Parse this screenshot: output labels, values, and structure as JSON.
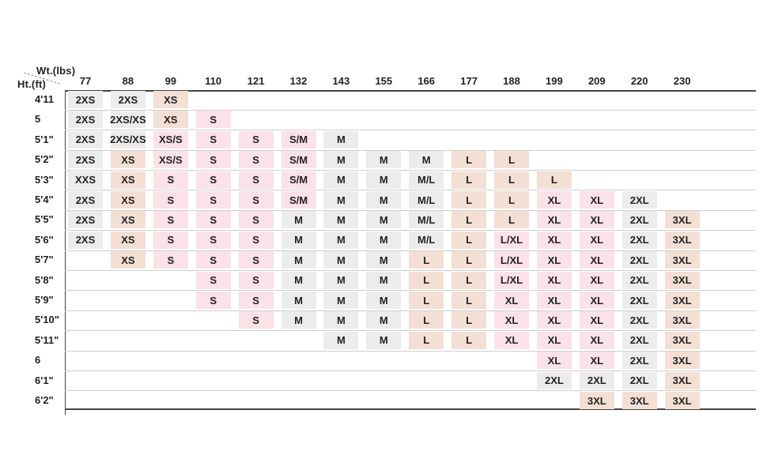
{
  "chart_data": {
    "type": "table",
    "x_label": "Wt.(lbs)",
    "y_label": "Ht.(ft)",
    "weights": [
      "77",
      "88",
      "99",
      "110",
      "121",
      "132",
      "143",
      "155",
      "166",
      "177",
      "188",
      "199",
      "209",
      "220",
      "230"
    ],
    "heights": [
      "4'11",
      "5",
      "5'1\"",
      "5'2\"",
      "5'3\"",
      "5'4\"",
      "5'5\"",
      "5'6\"",
      "5'7\"",
      "5'8\"",
      "5'9\"",
      "5'10\"",
      "5'11\"",
      "6",
      "6'1\"",
      "6'2\""
    ],
    "rows": [
      {
        "height": "4'11",
        "start": 0,
        "sizes": [
          "2XS",
          "2XS",
          "XS"
        ]
      },
      {
        "height": "5",
        "start": 0,
        "sizes": [
          "2XS",
          "2XS/XS",
          "XS",
          "S"
        ]
      },
      {
        "height": "5'1\"",
        "start": 0,
        "sizes": [
          "2XS",
          "2XS/XS",
          "XS/S",
          "S",
          "S",
          "S/M",
          "M"
        ]
      },
      {
        "height": "5'2\"",
        "start": 0,
        "sizes": [
          "2XS",
          "XS",
          "XS/S",
          "S",
          "S",
          "S/M",
          "M",
          "M",
          "M",
          "L",
          "L"
        ]
      },
      {
        "height": "5'3\"",
        "start": 0,
        "sizes": [
          "XXS",
          "XS",
          "S",
          "S",
          "S",
          "S/M",
          "M",
          "M",
          "M/L",
          "L",
          "L",
          "L"
        ]
      },
      {
        "height": "5'4\"",
        "start": 0,
        "sizes": [
          "2XS",
          "XS",
          "S",
          "S",
          "S",
          "S/M",
          "M",
          "M",
          "M/L",
          "L",
          "L",
          "XL",
          "XL",
          "2XL"
        ]
      },
      {
        "height": "5'5\"",
        "start": 0,
        "sizes": [
          "2XS",
          "XS",
          "S",
          "S",
          "S",
          "M",
          "M",
          "M",
          "M/L",
          "L",
          "L",
          "XL",
          "XL",
          "2XL",
          "3XL"
        ]
      },
      {
        "height": "5'6\"",
        "start": 0,
        "sizes": [
          "2XS",
          "XS",
          "S",
          "S",
          "S",
          "M",
          "M",
          "M",
          "M/L",
          "L",
          "L/XL",
          "XL",
          "XL",
          "2XL",
          "3XL"
        ]
      },
      {
        "height": "5'7\"",
        "start": 1,
        "sizes": [
          "XS",
          "S",
          "S",
          "S",
          "M",
          "M",
          "M",
          "L",
          "L",
          "L/XL",
          "XL",
          "XL",
          "2XL",
          "3XL"
        ]
      },
      {
        "height": "5'8\"",
        "start": 3,
        "sizes": [
          "S",
          "S",
          "M",
          "M",
          "M",
          "L",
          "L",
          "L/XL",
          "XL",
          "XL",
          "2XL",
          "3XL"
        ]
      },
      {
        "height": "5'9\"",
        "start": 3,
        "sizes": [
          "S",
          "S",
          "M",
          "M",
          "M",
          "L",
          "L",
          "XL",
          "XL",
          "XL",
          "2XL",
          "3XL"
        ]
      },
      {
        "height": "5'10\"",
        "start": 4,
        "sizes": [
          "S",
          "M",
          "M",
          "M",
          "L",
          "L",
          "XL",
          "XL",
          "XL",
          "2XL",
          "3XL"
        ]
      },
      {
        "height": "5'11\"",
        "start": 6,
        "sizes": [
          "M",
          "M",
          "L",
          "L",
          "XL",
          "XL",
          "XL",
          "2XL",
          "3XL"
        ]
      },
      {
        "height": "6",
        "start": 11,
        "sizes": [
          "XL",
          "XL",
          "2XL",
          "3XL"
        ]
      },
      {
        "height": "6'1\"",
        "start": 11,
        "sizes": [
          "2XL",
          "2XL",
          "2XL",
          "3XL"
        ]
      },
      {
        "height": "6'2\"",
        "start": 12,
        "sizes": [
          "3XL",
          "3XL",
          "3XL"
        ]
      }
    ],
    "size_colors": {
      "2XS": "#ececec",
      "XXS": "#ececec",
      "2XS/XS": "#ececec",
      "XS": "#f3dfd4",
      "XS/S": "#fbe1e8",
      "S": "#fbe1e8",
      "S/M": "#fbe1e8",
      "M": "#ececec",
      "M/L": "#ececec",
      "L": "#f3dfd4",
      "L/XL": "#fbe1e8",
      "XL": "#fbe1e8",
      "2XL": "#ececec",
      "3XL": "#f3dfd4"
    },
    "grid": true
  }
}
